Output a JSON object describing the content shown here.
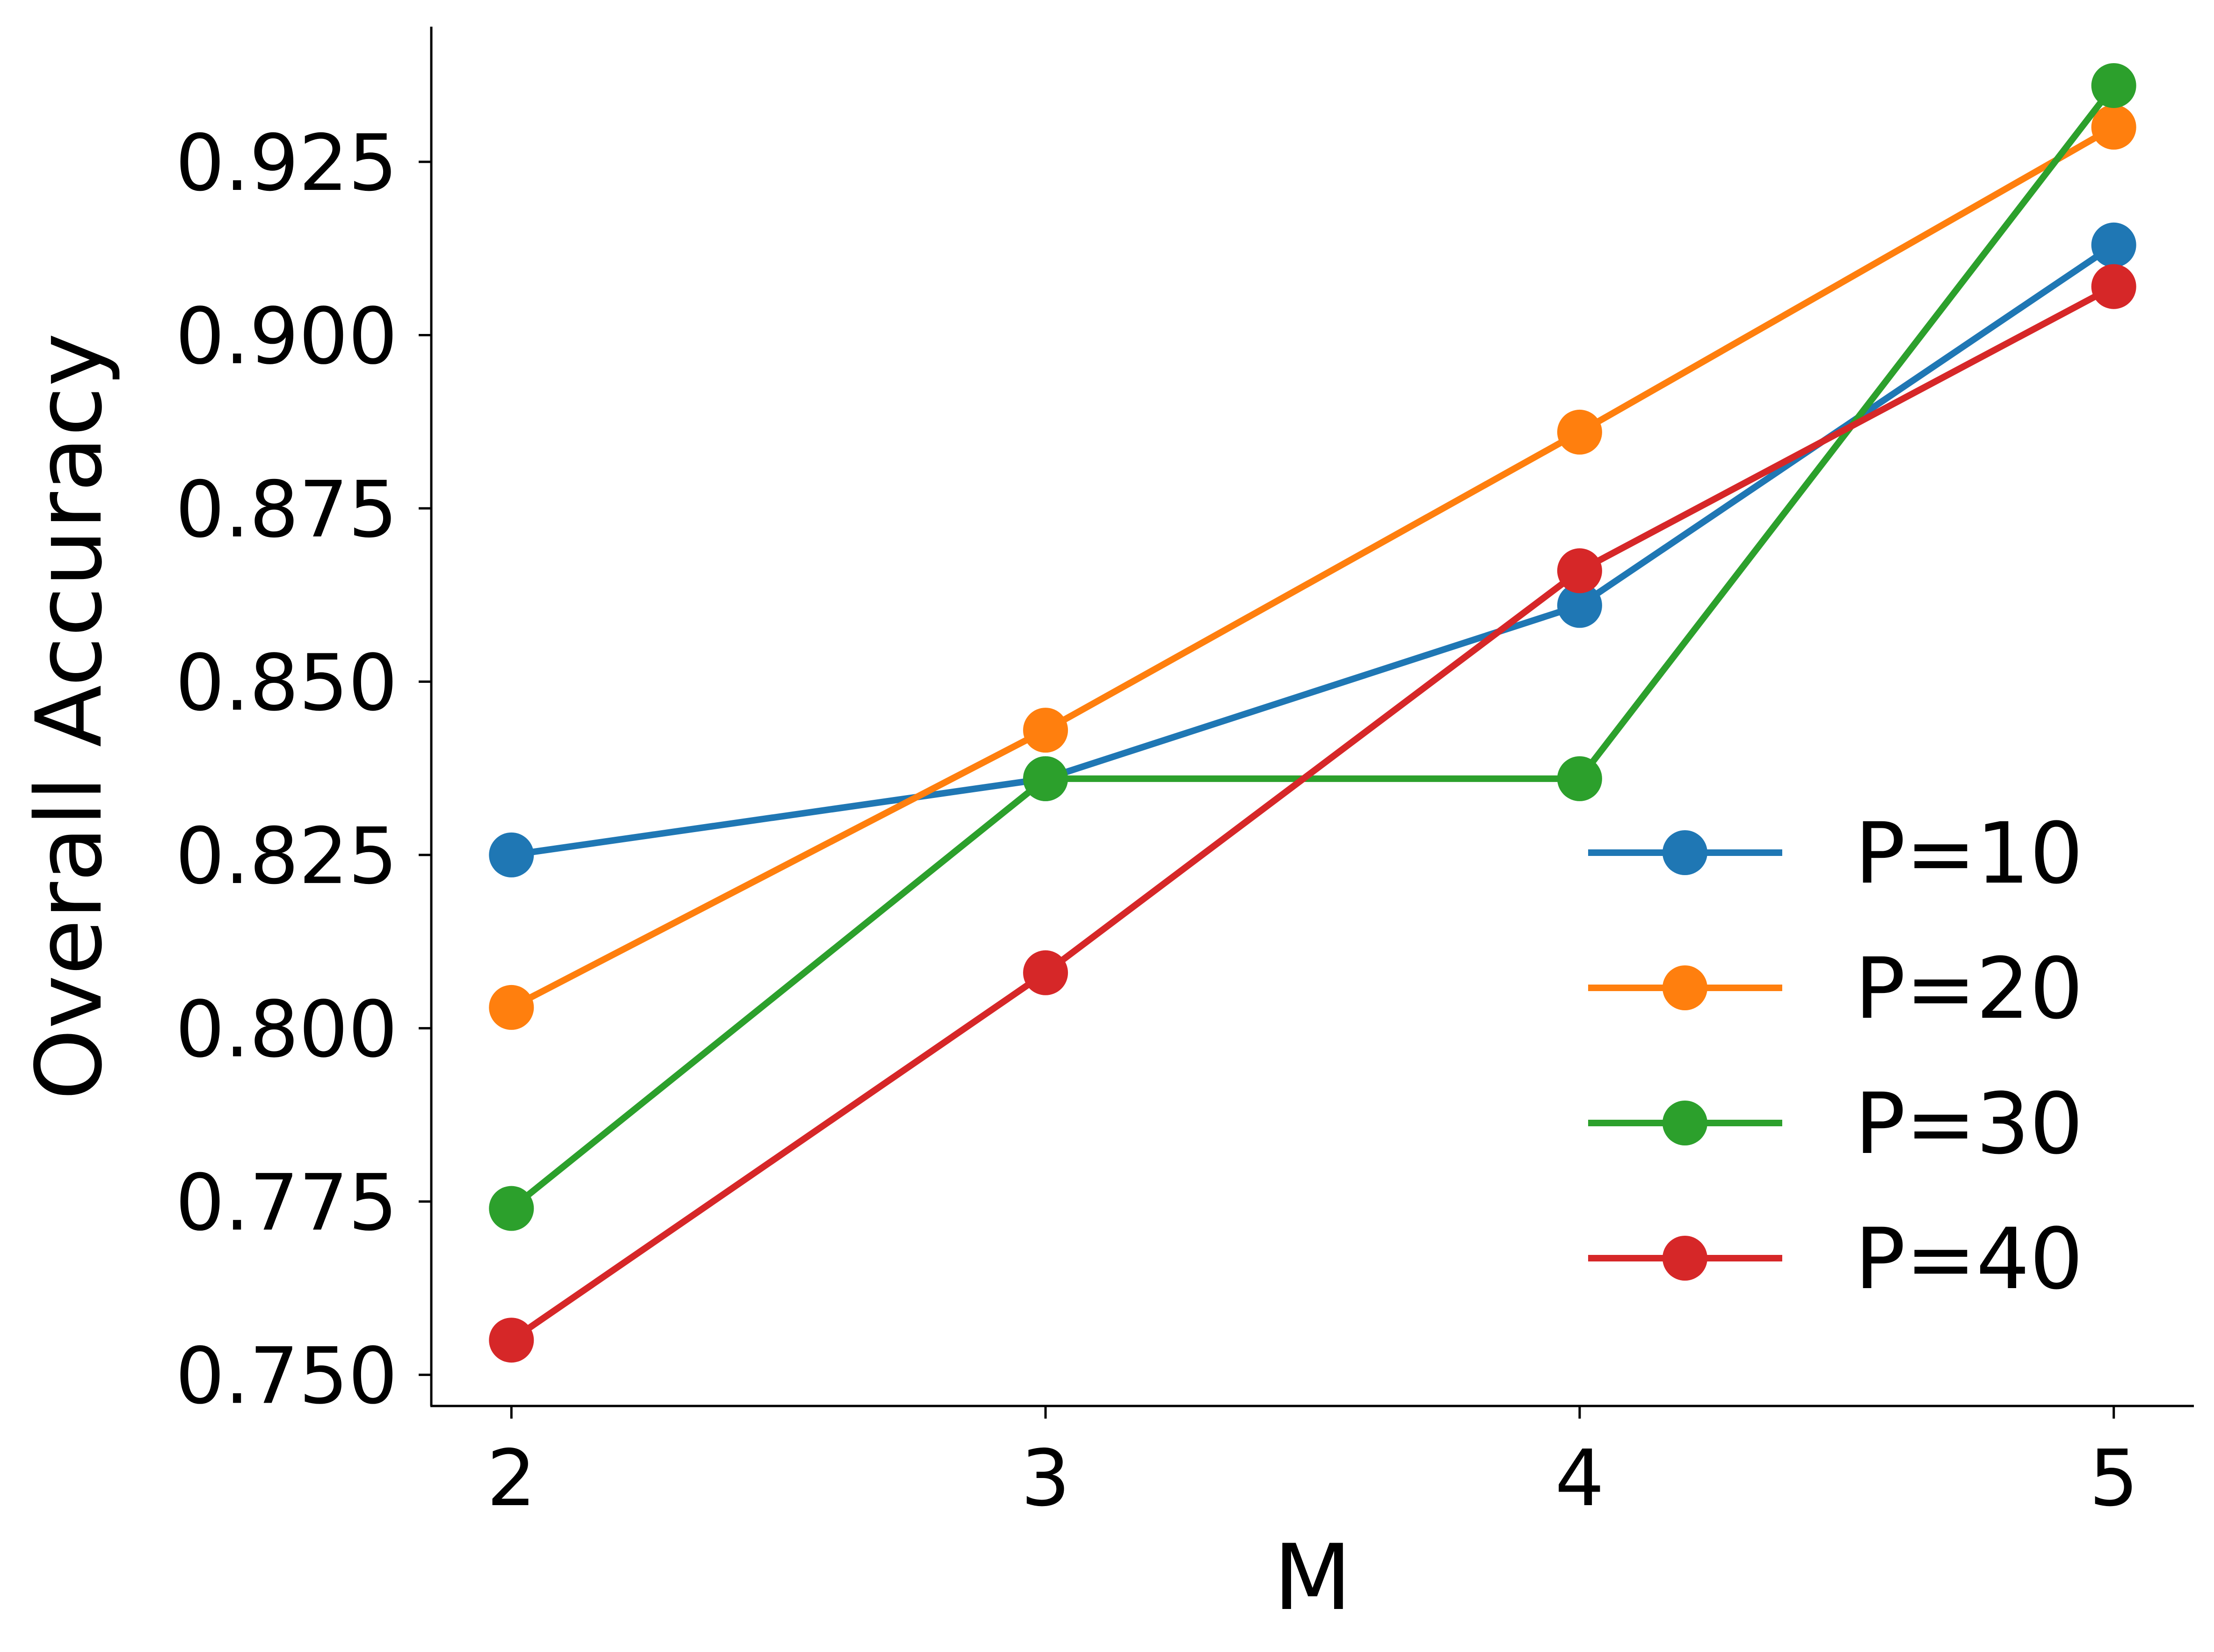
{
  "chart_data": {
    "type": "line",
    "title": "",
    "xlabel": "M",
    "ylabel": "Overall Accuracy",
    "x": [
      2,
      3,
      4,
      5
    ],
    "xticks": [
      "2",
      "3",
      "4",
      "5"
    ],
    "yticks": [
      "0.750",
      "0.775",
      "0.800",
      "0.825",
      "0.850",
      "0.875",
      "0.900",
      "0.925"
    ],
    "ytick_values": [
      0.75,
      0.775,
      0.8,
      0.825,
      0.85,
      0.875,
      0.9,
      0.925
    ],
    "xlim": [
      1.85,
      5.15
    ],
    "ylim": [
      0.7455,
      0.9445
    ],
    "grid": false,
    "legend_position": "lower-right",
    "series": [
      {
        "name": "P=10",
        "color": "#1f77b4",
        "values": [
          0.825,
          0.836,
          0.861,
          0.913
        ]
      },
      {
        "name": "P=20",
        "color": "#ff7f0e",
        "values": [
          0.803,
          0.843,
          0.886,
          0.93
        ]
      },
      {
        "name": "P=30",
        "color": "#2ca02c",
        "values": [
          0.774,
          0.836,
          0.836,
          0.936
        ]
      },
      {
        "name": "P=40",
        "color": "#d62728",
        "values": [
          0.755,
          0.808,
          0.866,
          0.907
        ]
      }
    ]
  }
}
